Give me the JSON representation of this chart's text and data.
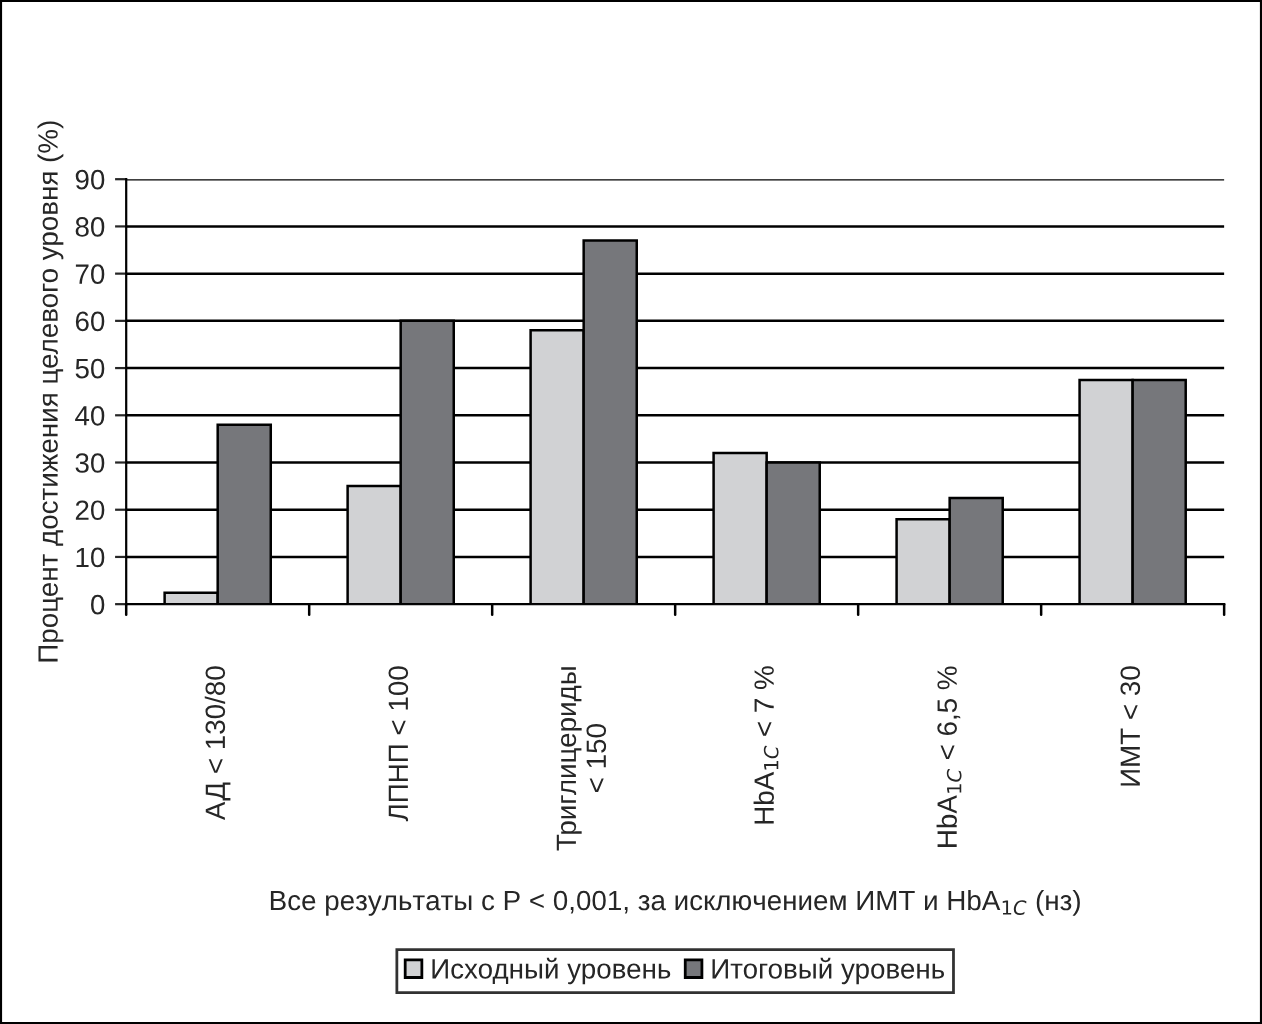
{
  "chart_data": {
    "type": "bar",
    "ylabel": "Процент достижения целевого уровня (%)",
    "xlabel": "Все результаты с P < 0,001, за исключением ИМТ и HbA$_{1C}$ (нз)",
    "categories": [
      "АД < 130/80",
      "ЛПНП < 100",
      "Триглицериды\n< 150",
      "HbA$_{1C}$ < 7 %",
      "HbA$_{1C}$ < 6,5 %",
      "ИМТ < 30"
    ],
    "series": [
      {
        "name": "Исходный уровень",
        "color": "#d1d2d4",
        "values": [
          2.4,
          25,
          58,
          32,
          18,
          47.5
        ]
      },
      {
        "name": "Итоговый уровень",
        "color": "#76777b",
        "values": [
          38,
          60,
          77,
          30,
          22.5,
          47.5
        ]
      }
    ],
    "ylim": [
      0,
      90
    ],
    "yticks": [
      0,
      10,
      20,
      30,
      40,
      50,
      60,
      70,
      80,
      90
    ],
    "grid": "y",
    "legend": "bottom"
  }
}
